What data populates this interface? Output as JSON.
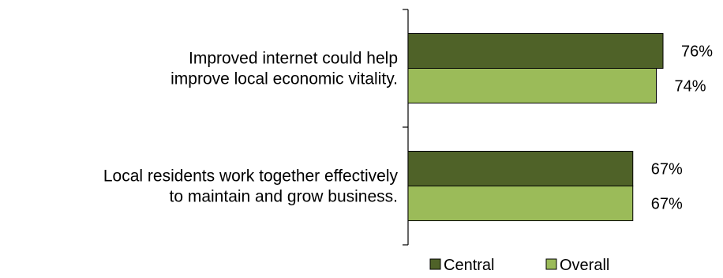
{
  "chart_data": {
    "type": "bar",
    "orientation": "horizontal",
    "categories": [
      [
        "Improved internet could help",
        "improve local economic vitality."
      ],
      [
        "Local residents work together effectively",
        "to maintain and grow business."
      ]
    ],
    "series": [
      {
        "name": "Central",
        "values": [
          76,
          67
        ],
        "labels": [
          "76%",
          "67%"
        ],
        "color": "#4f6228"
      },
      {
        "name": "Overall",
        "values": [
          74,
          67
        ],
        "labels": [
          "74%",
          "67%"
        ],
        "color": "#9bbb59"
      }
    ],
    "xlim": [
      0,
      100
    ],
    "unit": "%",
    "title": "",
    "xlabel": "",
    "ylabel": "",
    "grid": false,
    "legend": "bottom"
  }
}
